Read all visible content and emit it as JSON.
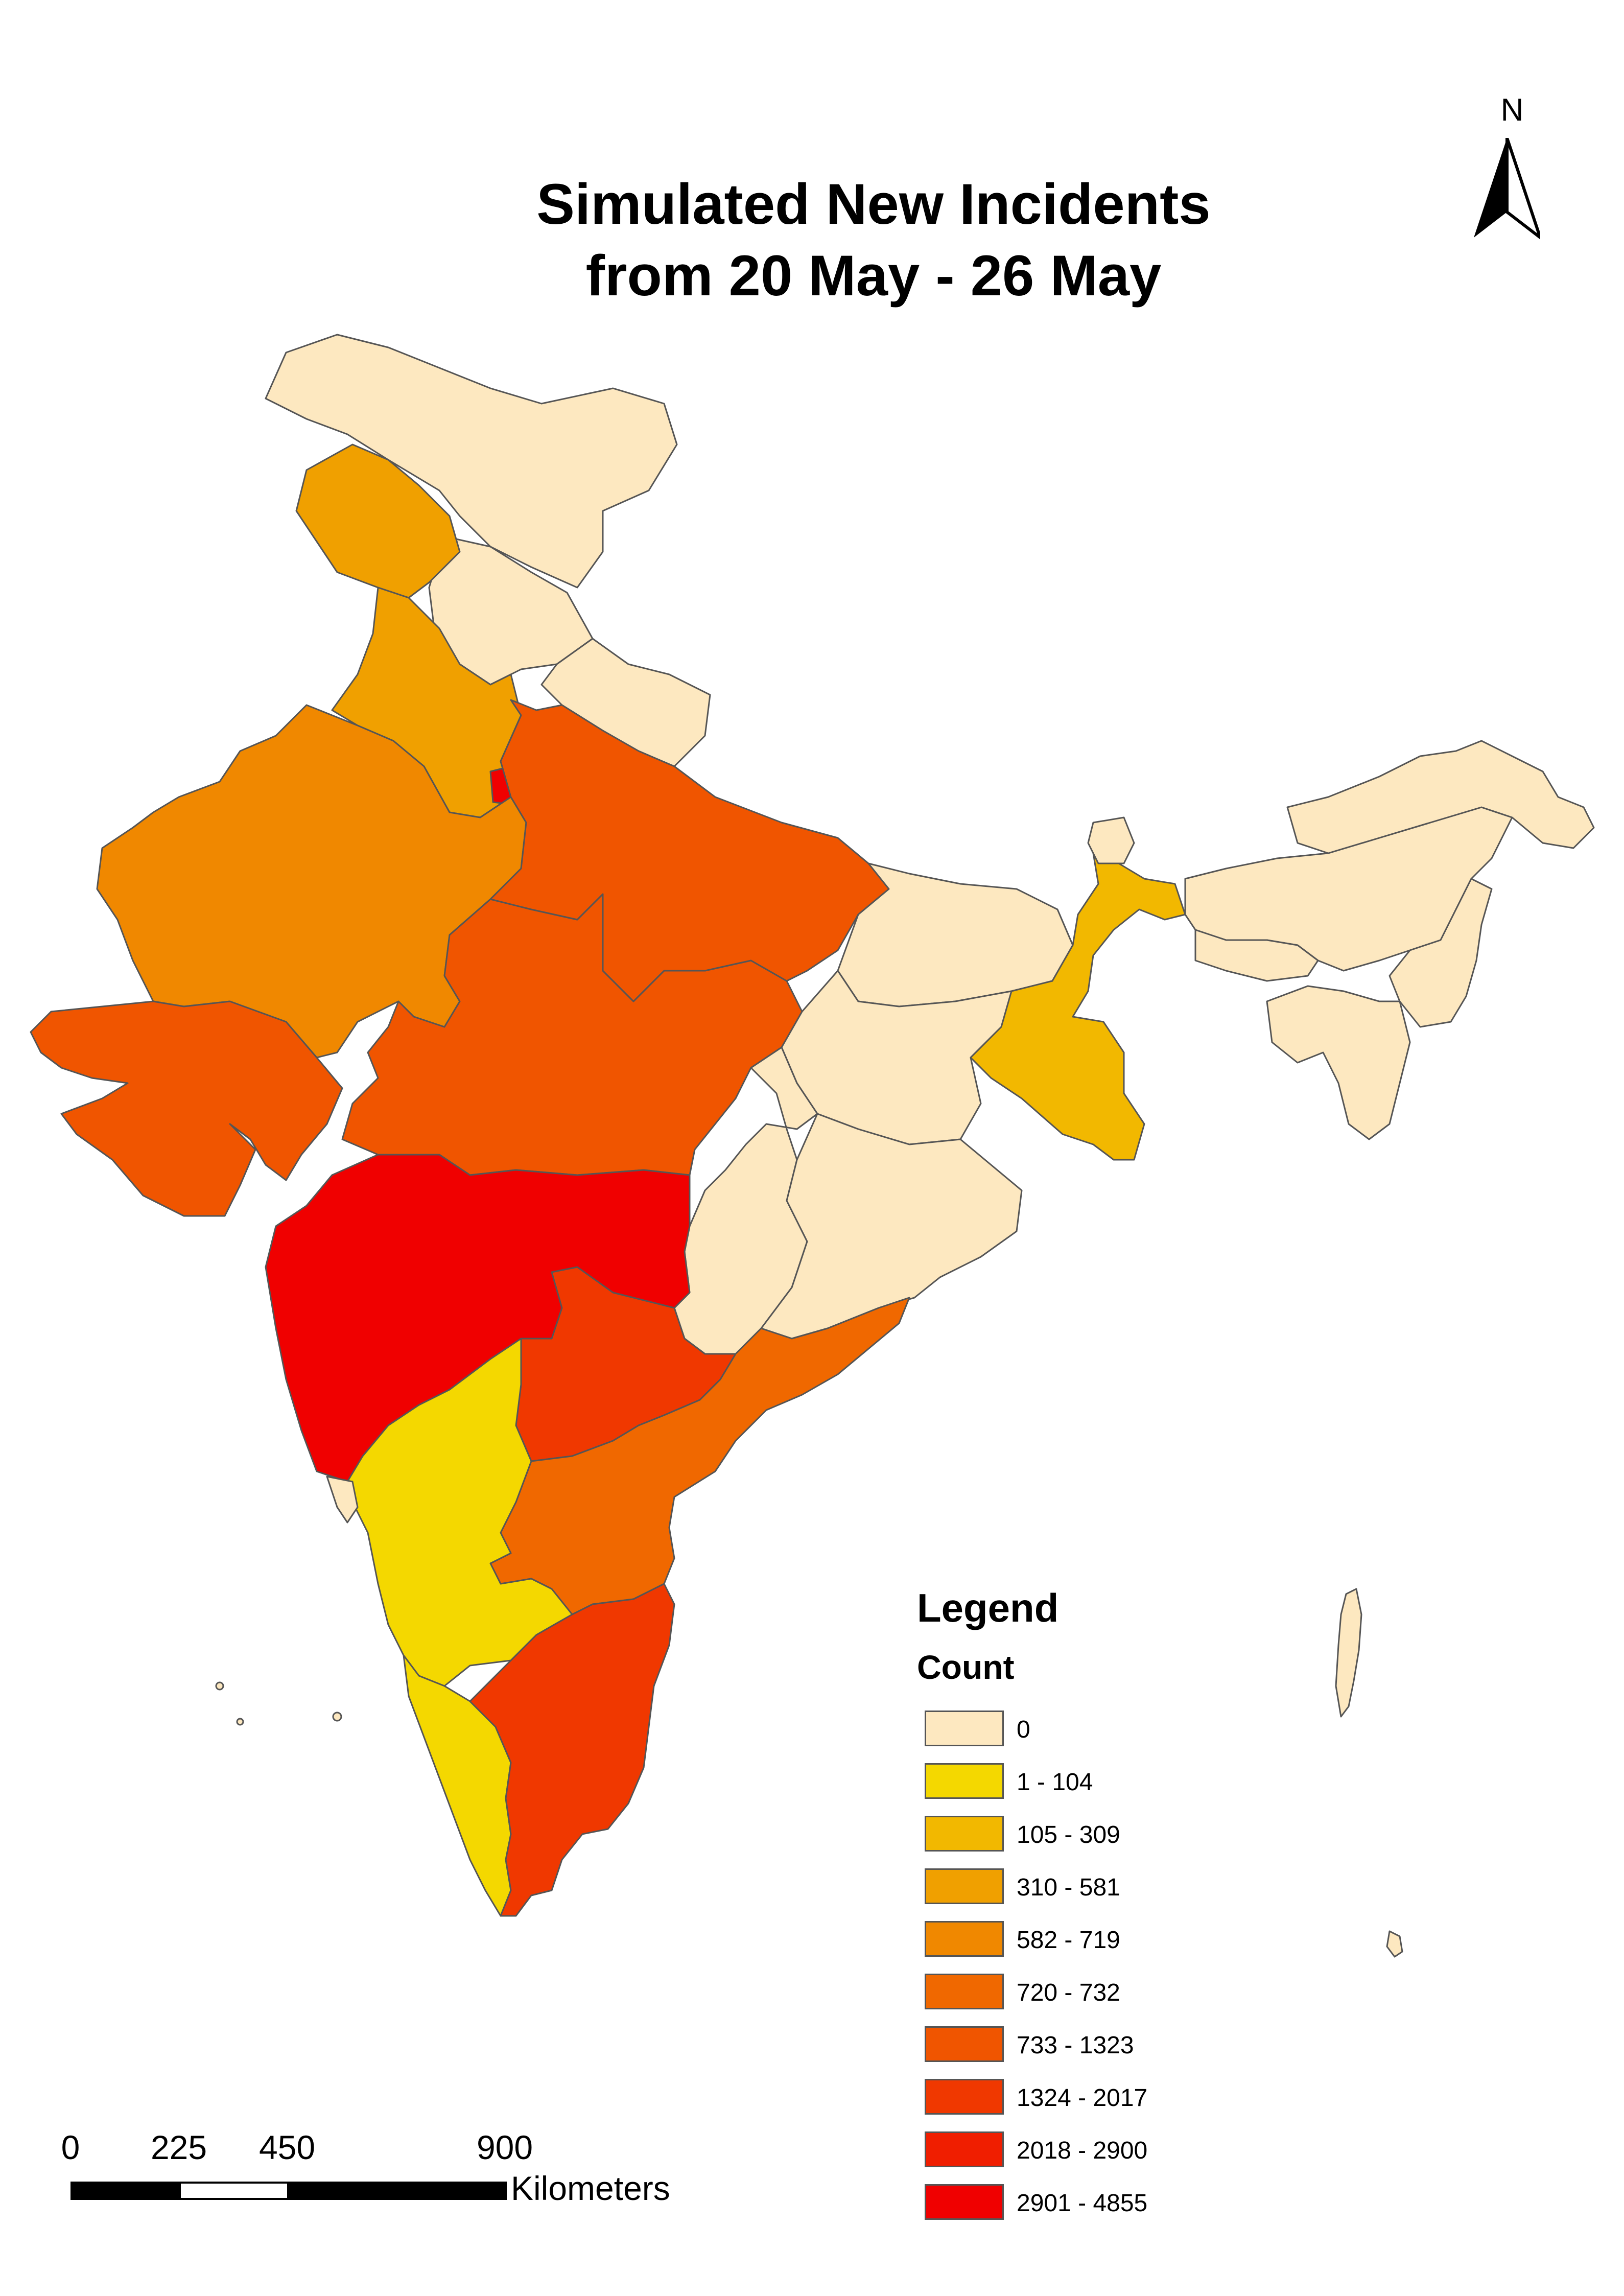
{
  "title": {
    "line1": "Simulated New Incidents",
    "line2": "from 20 May - 26 May"
  },
  "north_arrow": {
    "label": "N",
    "icon": "north-arrow-icon"
  },
  "legend": {
    "title": "Legend",
    "subtitle": "Count",
    "classes": [
      {
        "label": "0",
        "color": "#fde8c0"
      },
      {
        "label": "1 - 104",
        "color": "#f4d800"
      },
      {
        "label": "105 - 309",
        "color": "#f2b800"
      },
      {
        "label": "310 - 581",
        "color": "#f0a000"
      },
      {
        "label": "582 - 719",
        "color": "#f08800"
      },
      {
        "label": "720 - 732",
        "color": "#f06800"
      },
      {
        "label": "733 - 1323",
        "color": "#f05500"
      },
      {
        "label": "1324 - 2017",
        "color": "#f03800"
      },
      {
        "label": "2018 - 2900",
        "color": "#f01e00"
      },
      {
        "label": "2901 - 4855",
        "color": "#f00000"
      }
    ]
  },
  "scale_bar": {
    "ticks": [
      "0",
      "225",
      "450",
      "900"
    ],
    "unit": "Kilometers"
  }
}
